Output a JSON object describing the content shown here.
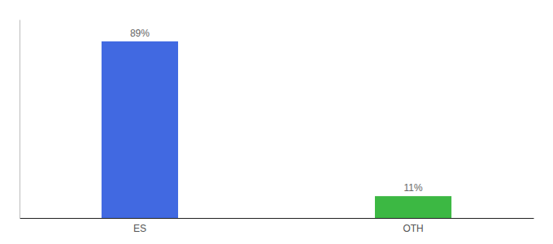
{
  "chart_data": {
    "type": "bar",
    "categories": [
      "ES",
      "OTH"
    ],
    "values": [
      89,
      11
    ],
    "value_labels": [
      "89%",
      "11%"
    ],
    "colors": [
      "#4169e1",
      "#3cb843"
    ],
    "ylim": [
      0,
      100
    ],
    "data_labels": true,
    "tick_labels": "x",
    "grid": false
  }
}
